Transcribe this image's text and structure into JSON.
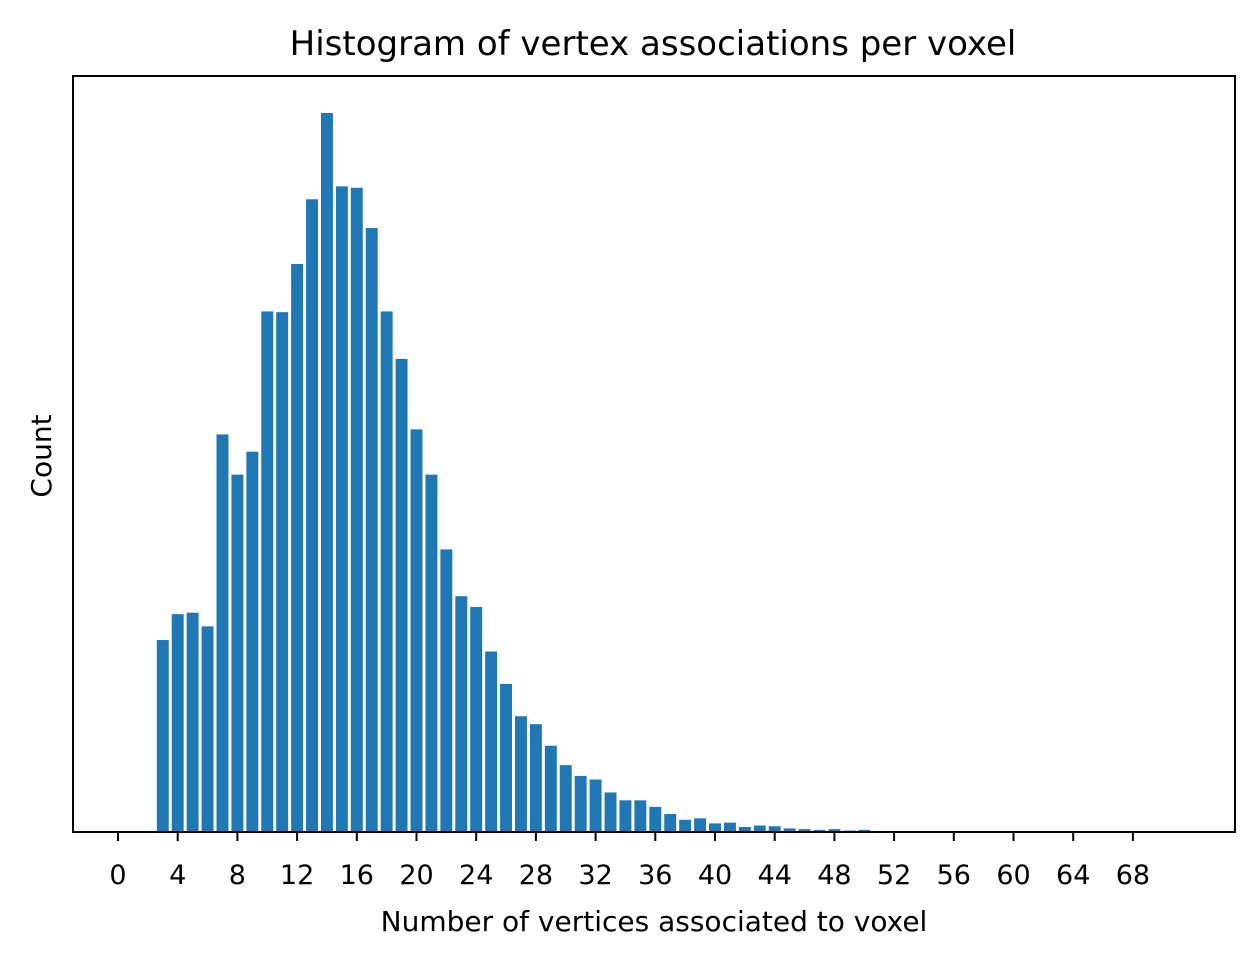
{
  "chart_data": {
    "type": "bar",
    "title": "Histogram of vertex associations per voxel",
    "xlabel": "Number of vertices associated to voxel",
    "ylabel": "Count",
    "x_ticks": [
      0,
      4,
      8,
      12,
      16,
      20,
      24,
      28,
      32,
      36,
      40,
      44,
      48,
      52,
      56,
      60,
      64,
      68
    ],
    "xlim": [
      -3,
      75
    ],
    "y_ticks_shown": false,
    "ylim": [
      0,
      1
    ],
    "grid": false,
    "bar_color": "#1f77b4",
    "categories": [
      3,
      4,
      5,
      6,
      7,
      8,
      9,
      10,
      11,
      12,
      13,
      14,
      15,
      16,
      17,
      18,
      19,
      20,
      21,
      22,
      23,
      24,
      25,
      26,
      27,
      28,
      29,
      30,
      31,
      32,
      33,
      34,
      35,
      36,
      37,
      38,
      39,
      40,
      41,
      42,
      43,
      44,
      45,
      46,
      47,
      48,
      49,
      50
    ],
    "values": [
      0.267,
      0.303,
      0.305,
      0.286,
      0.553,
      0.497,
      0.529,
      0.724,
      0.723,
      0.79,
      0.88,
      1.0,
      0.898,
      0.896,
      0.84,
      0.724,
      0.658,
      0.56,
      0.497,
      0.393,
      0.328,
      0.313,
      0.251,
      0.206,
      0.161,
      0.15,
      0.12,
      0.093,
      0.078,
      0.073,
      0.055,
      0.044,
      0.044,
      0.035,
      0.025,
      0.017,
      0.019,
      0.012,
      0.013,
      0.007,
      0.009,
      0.008,
      0.005,
      0.004,
      0.003,
      0.004,
      0.002,
      0.003
    ]
  }
}
